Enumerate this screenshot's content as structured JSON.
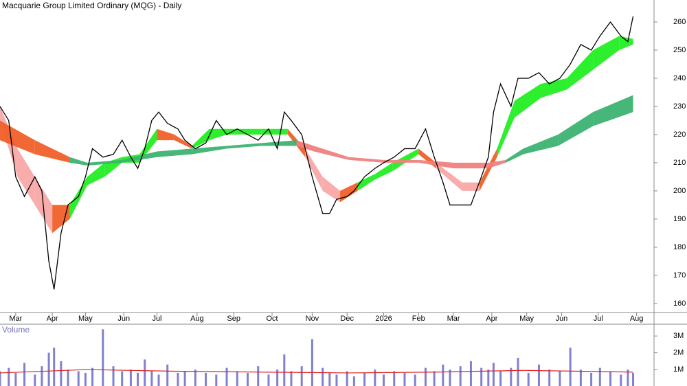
{
  "chart_data": [
    {
      "type": "line",
      "title": "Macquarie Group Limited Ordinary (MQG) - Daily",
      "x": [
        0,
        5,
        9,
        14,
        20,
        24,
        28,
        31,
        35,
        39,
        45,
        49,
        53,
        59,
        65,
        70,
        75,
        79,
        83,
        87,
        91,
        96,
        102,
        106,
        112,
        118,
        124,
        130,
        136,
        142,
        148,
        154,
        159,
        163,
        167,
        173,
        179,
        185,
        189,
        193,
        199,
        203,
        209,
        215,
        220,
        226,
        232,
        238,
        244,
        249,
        254,
        258,
        264,
        270,
        276,
        280,
        283,
        287,
        293,
        297,
        303,
        309,
        315,
        321,
        327,
        333,
        339,
        344,
        350,
        356,
        360,
        363
      ],
      "series": [
        {
          "color": "#000000",
          "values": [
            230,
            225,
            205,
            198,
            205,
            200,
            175,
            165,
            185,
            195,
            198,
            205,
            215,
            212,
            213,
            218,
            212,
            208,
            215,
            225,
            228,
            224,
            222,
            218,
            215,
            217,
            225,
            220,
            222,
            220,
            218,
            222,
            215,
            228,
            225,
            220,
            205,
            192,
            192,
            197,
            198,
            200,
            205,
            208,
            210,
            212,
            215,
            215,
            222,
            212,
            203,
            195,
            195,
            195,
            205,
            212,
            228,
            238,
            230,
            240,
            240,
            242,
            238,
            240,
            245,
            252,
            250,
            255,
            260,
            255,
            253,
            262
          ]
        }
      ],
      "bands": [
        {
          "x": [
            0,
            10,
            20,
            30,
            40,
            50,
            60,
            70,
            80,
            90,
            100,
            110,
            120,
            130,
            150,
            165,
            175,
            185,
            195,
            205,
            215,
            225,
            240,
            250,
            265,
            275,
            285,
            295,
            310,
            325,
            340,
            355,
            363
          ],
          "upper": [
            230,
            215,
            205,
            195,
            195,
            205,
            210,
            212,
            213,
            222,
            220,
            216,
            222,
            222,
            222,
            222,
            215,
            205,
            200,
            203,
            206,
            210,
            215,
            210,
            203,
            203,
            215,
            232,
            238,
            240,
            250,
            255,
            254
          ],
          "lower": [
            225,
            205,
            195,
            185,
            190,
            202,
            205,
            210,
            210,
            218,
            218,
            215,
            218,
            220,
            220,
            220,
            212,
            200,
            196,
            200,
            204,
            207,
            213,
            208,
            200,
            200,
            212,
            226,
            233,
            236,
            243,
            250,
            252
          ],
          "colors": [
            "#f8a8a8",
            "#f8a8a8",
            "#f8a8a8",
            "#f0602a",
            "#22ee22",
            "#22ee22",
            "#22ee22",
            "#22ee22",
            "#22ee22",
            "#f0602a",
            "#f0602a",
            "#22ee22",
            "#22ee22",
            "#22ee22",
            "#22ee22",
            "#f0602a",
            "#f8a8a8",
            "#f8a8a8",
            "#f0602a",
            "#22ee22",
            "#22ee22",
            "#22ee22",
            "#f0602a",
            "#f8a8a8",
            "#f8a8a8",
            "#f0602a",
            "#22ee22",
            "#22ee22",
            "#22ee22",
            "#22ee22",
            "#22ee22",
            "#22ee22"
          ]
        },
        {
          "x": [
            0,
            20,
            40,
            50,
            70,
            90,
            110,
            130,
            150,
            170,
            180,
            200,
            220,
            240,
            260,
            280,
            290,
            300,
            320,
            340,
            363
          ],
          "upper": [
            225,
            218,
            212,
            210,
            211,
            214,
            215,
            216,
            217,
            218,
            216,
            212,
            211,
            211,
            210,
            210,
            211,
            215,
            220,
            228,
            234
          ],
          "lower": [
            218,
            213,
            210,
            209,
            210,
            212,
            213,
            215,
            216,
            216,
            214,
            211,
            210,
            210,
            208,
            208,
            210,
            213,
            216,
            223,
            228
          ],
          "colors": [
            "#f0602a",
            "#f0602a",
            "#3cb371",
            "#3cb371",
            "#3cb371",
            "#3cb371",
            "#3cb371",
            "#3cb371",
            "#3cb371",
            "#f08080",
            "#f08080",
            "#f08080",
            "#f08080",
            "#f08080",
            "#f08080",
            "#f08080",
            "#3cb371",
            "#3cb371",
            "#3cb371",
            "#3cb371"
          ]
        }
      ],
      "xlim": [
        0,
        375
      ],
      "xticks": [
        {
          "value": 9,
          "label": "Mar"
        },
        {
          "value": 30,
          "label": "Apr"
        },
        {
          "value": 49,
          "label": "May"
        },
        {
          "value": 71,
          "label": "Jun"
        },
        {
          "value": 90,
          "label": "Jul"
        },
        {
          "value": 113,
          "label": "Aug"
        },
        {
          "value": 134,
          "label": "Sep"
        },
        {
          "value": 156,
          "label": "Oct"
        },
        {
          "value": 179,
          "label": "Nov"
        },
        {
          "value": 199,
          "label": "Dec"
        },
        {
          "value": 220,
          "label": "2026"
        },
        {
          "value": 240,
          "label": "Feb"
        },
        {
          "value": 260,
          "label": "Mar"
        },
        {
          "value": 282,
          "label": "Apr"
        },
        {
          "value": 302,
          "label": "May"
        },
        {
          "value": 322,
          "label": "Jun"
        },
        {
          "value": 343,
          "label": "Jul"
        },
        {
          "value": 365,
          "label": "Aug"
        }
      ],
      "ylim": [
        156.8,
        267.8
      ],
      "yticks": [
        160,
        170,
        180,
        190,
        200,
        210,
        220,
        230,
        240,
        250,
        260
      ]
    },
    {
      "type": "bar",
      "title": "Volume",
      "x": [
        0,
        5,
        9,
        14,
        20,
        24,
        28,
        31,
        35,
        39,
        45,
        49,
        53,
        59,
        65,
        70,
        75,
        79,
        83,
        87,
        91,
        96,
        102,
        106,
        112,
        118,
        124,
        130,
        136,
        142,
        148,
        154,
        159,
        163,
        167,
        173,
        179,
        185,
        189,
        193,
        199,
        203,
        209,
        215,
        220,
        226,
        232,
        238,
        244,
        249,
        254,
        258,
        264,
        270,
        276,
        280,
        283,
        287,
        293,
        297,
        303,
        309,
        315,
        321,
        327,
        333,
        339,
        344,
        350,
        356,
        360,
        363
      ],
      "values": [
        0.9,
        1.1,
        0.8,
        1.4,
        0.7,
        1.2,
        2.0,
        2.3,
        1.5,
        1.0,
        0.9,
        0.8,
        1.1,
        3.4,
        1.2,
        0.9,
        1.0,
        0.8,
        1.6,
        0.9,
        0.7,
        1.3,
        0.8,
        0.9,
        1.0,
        0.8,
        0.7,
        1.1,
        0.9,
        0.8,
        1.2,
        0.7,
        1.0,
        1.9,
        0.9,
        1.2,
        2.8,
        1.1,
        0.8,
        0.7,
        0.9,
        0.6,
        0.8,
        1.0,
        0.7,
        0.9,
        0.8,
        0.7,
        1.1,
        0.9,
        1.3,
        1.0,
        1.2,
        1.5,
        1.1,
        1.0,
        1.4,
        0.9,
        1.1,
        1.7,
        0.8,
        1.3,
        1.0,
        0.9,
        2.3,
        1.0,
        0.8,
        1.1,
        0.9,
        0.7,
        1.0,
        0.8
      ],
      "color": "#8080d0",
      "average": {
        "x": [
          0,
          50,
          100,
          150,
          200,
          250,
          300,
          363
        ],
        "values": [
          0.8,
          1.0,
          0.9,
          0.85,
          0.8,
          0.85,
          0.95,
          0.85
        ],
        "color": "#e02020"
      },
      "xlim": [
        0,
        375
      ],
      "ylim": [
        0,
        3.6
      ],
      "yticks": [
        {
          "value": 1,
          "label": "1M"
        },
        {
          "value": 2,
          "label": "2M"
        },
        {
          "value": 3,
          "label": "3M"
        }
      ]
    }
  ]
}
